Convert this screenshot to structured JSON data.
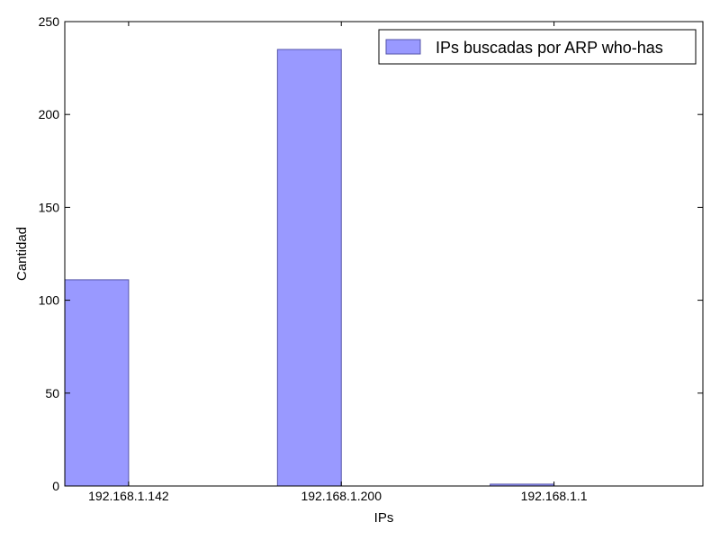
{
  "chart_data": {
    "type": "bar",
    "title": "",
    "xlabel": "IPs",
    "ylabel": "Cantidad",
    "categories": [
      "192.168.1.142",
      "192.168.1.200",
      "192.168.1.1"
    ],
    "series": [
      {
        "name": "IPs buscadas por ARP who-has",
        "values": [
          111,
          235,
          1
        ],
        "color": "#9999ff"
      }
    ],
    "ylim": [
      0,
      250
    ],
    "yticks": [
      0,
      50,
      100,
      150,
      200,
      250
    ],
    "grid": false,
    "legend_position": "top-right"
  }
}
